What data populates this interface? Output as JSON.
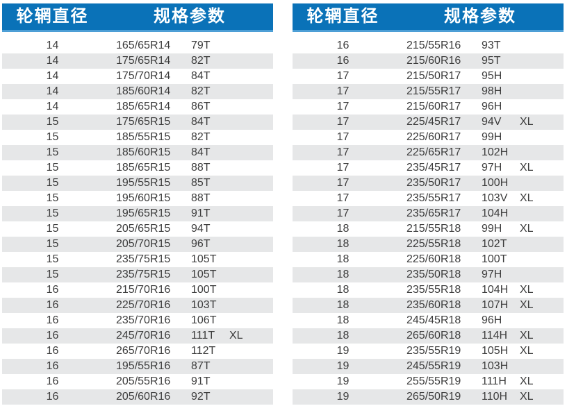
{
  "colors": {
    "header_bg": "#0A72B8",
    "header_underline": "#4D9FD6",
    "row_stripe": "#E6E7E8",
    "row_text": "#3C3C3C",
    "header_text": "#FFFFFF"
  },
  "tables": [
    {
      "headers": {
        "diameter": "轮辋直径",
        "spec": "规格参数"
      },
      "rows": [
        {
          "diameter": "14",
          "spec": "165/65R14",
          "rating": "79T",
          "xl": ""
        },
        {
          "diameter": "14",
          "spec": "175/65R14",
          "rating": "82T",
          "xl": ""
        },
        {
          "diameter": "14",
          "spec": "175/70R14",
          "rating": "84T",
          "xl": ""
        },
        {
          "diameter": "14",
          "spec": "185/60R14",
          "rating": "82T",
          "xl": ""
        },
        {
          "diameter": "14",
          "spec": "185/65R14",
          "rating": "86T",
          "xl": ""
        },
        {
          "diameter": "15",
          "spec": "175/65R15",
          "rating": "84T",
          "xl": ""
        },
        {
          "diameter": "15",
          "spec": "185/55R15",
          "rating": "82T",
          "xl": ""
        },
        {
          "diameter": "15",
          "spec": "185/60R15",
          "rating": "84T",
          "xl": ""
        },
        {
          "diameter": "15",
          "spec": "185/65R15",
          "rating": "88T",
          "xl": ""
        },
        {
          "diameter": "15",
          "spec": "195/55R15",
          "rating": "85T",
          "xl": ""
        },
        {
          "diameter": "15",
          "spec": "195/60R15",
          "rating": "88T",
          "xl": ""
        },
        {
          "diameter": "15",
          "spec": "195/65R15",
          "rating": "91T",
          "xl": ""
        },
        {
          "diameter": "15",
          "spec": "205/65R15",
          "rating": "94T",
          "xl": ""
        },
        {
          "diameter": "15",
          "spec": "205/70R15",
          "rating": "96T",
          "xl": ""
        },
        {
          "diameter": "15",
          "spec": "235/75R15",
          "rating": "105T",
          "xl": ""
        },
        {
          "diameter": "15",
          "spec": "235/75R15",
          "rating": "105T",
          "xl": ""
        },
        {
          "diameter": "16",
          "spec": "215/70R16",
          "rating": "100T",
          "xl": ""
        },
        {
          "diameter": "16",
          "spec": "225/70R16",
          "rating": "103T",
          "xl": ""
        },
        {
          "diameter": "16",
          "spec": "235/70R16",
          "rating": "106T",
          "xl": ""
        },
        {
          "diameter": "16",
          "spec": "245/70R16",
          "rating": "111T",
          "xl": "XL"
        },
        {
          "diameter": "16",
          "spec": "265/70R16",
          "rating": "112T",
          "xl": ""
        },
        {
          "diameter": "16",
          "spec": "195/55R16",
          "rating": "87T",
          "xl": ""
        },
        {
          "diameter": "16",
          "spec": "205/55R16",
          "rating": "91T",
          "xl": ""
        },
        {
          "diameter": "16",
          "spec": "205/60R16",
          "rating": "92T",
          "xl": ""
        }
      ]
    },
    {
      "headers": {
        "diameter": "轮辋直径",
        "spec": "规格参数"
      },
      "rows": [
        {
          "diameter": "16",
          "spec": "215/55R16",
          "rating": "93T",
          "xl": ""
        },
        {
          "diameter": "16",
          "spec": "215/60R16",
          "rating": "95T",
          "xl": ""
        },
        {
          "diameter": "17",
          "spec": "215/50R17",
          "rating": "95H",
          "xl": ""
        },
        {
          "diameter": "17",
          "spec": "215/55R17",
          "rating": "98H",
          "xl": ""
        },
        {
          "diameter": "17",
          "spec": "215/60R17",
          "rating": "96H",
          "xl": ""
        },
        {
          "diameter": "17",
          "spec": "225/45R17",
          "rating": "94V",
          "xl": "XL"
        },
        {
          "diameter": "17",
          "spec": "225/60R17",
          "rating": "99H",
          "xl": ""
        },
        {
          "diameter": "17",
          "spec": "225/65R17",
          "rating": "102H",
          "xl": ""
        },
        {
          "diameter": "17",
          "spec": "235/45R17",
          "rating": "97H",
          "xl": "XL"
        },
        {
          "diameter": "17",
          "spec": "235/50R17",
          "rating": "100H",
          "xl": ""
        },
        {
          "diameter": "17",
          "spec": "235/55R17",
          "rating": "103V",
          "xl": "XL"
        },
        {
          "diameter": "17",
          "spec": "235/65R17",
          "rating": "104H",
          "xl": ""
        },
        {
          "diameter": "18",
          "spec": "215/55R18",
          "rating": "99H",
          "xl": "XL"
        },
        {
          "diameter": "18",
          "spec": "225/55R18",
          "rating": "102T",
          "xl": ""
        },
        {
          "diameter": "18",
          "spec": "225/60R18",
          "rating": "100T",
          "xl": ""
        },
        {
          "diameter": "18",
          "spec": "235/50R18",
          "rating": "97H",
          "xl": ""
        },
        {
          "diameter": "18",
          "spec": "235/55R18",
          "rating": "104H",
          "xl": "XL"
        },
        {
          "diameter": "18",
          "spec": "235/60R18",
          "rating": "107H",
          "xl": "XL"
        },
        {
          "diameter": "18",
          "spec": "245/45R18",
          "rating": "96H",
          "xl": ""
        },
        {
          "diameter": "18",
          "spec": "265/60R18",
          "rating": "114H",
          "xl": "XL"
        },
        {
          "diameter": "19",
          "spec": "235/55R19",
          "rating": "105H",
          "xl": "XL"
        },
        {
          "diameter": "19",
          "spec": "245/55R19",
          "rating": "103H",
          "xl": ""
        },
        {
          "diameter": "19",
          "spec": "255/55R19",
          "rating": "111H",
          "xl": "XL"
        },
        {
          "diameter": "19",
          "spec": "265/50R19",
          "rating": "110H",
          "xl": "XL"
        }
      ]
    }
  ]
}
